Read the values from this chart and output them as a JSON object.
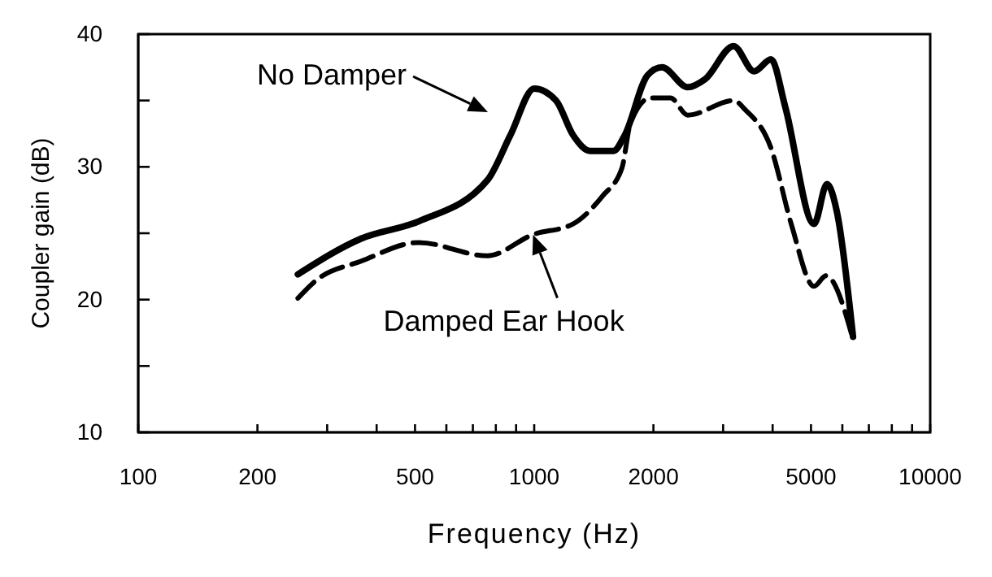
{
  "chart_data": {
    "type": "line",
    "xlabel": "Frequency (Hz)",
    "ylabel": "Coupler gain (dB)",
    "log": "x",
    "xlim": [
      100,
      10000
    ],
    "ylim": [
      10,
      40
    ],
    "xticks": [
      100,
      200,
      {
        "value": 300,
        "label": null
      },
      {
        "value": 400,
        "label": null
      },
      500,
      {
        "value": 600,
        "label": null
      },
      {
        "value": 700,
        "label": null
      },
      {
        "value": 800,
        "label": null
      },
      {
        "value": 900,
        "label": null
      },
      1000,
      2000,
      {
        "value": 3000,
        "label": null
      },
      {
        "value": 4000,
        "label": null
      },
      5000,
      {
        "value": 6000,
        "label": null
      },
      {
        "value": 7000,
        "label": null
      },
      {
        "value": 8000,
        "label": null
      },
      {
        "value": 9000,
        "label": null
      },
      10000
    ],
    "yticks": [
      10,
      {
        "value": 15,
        "label": null
      },
      20,
      {
        "value": 25,
        "label": null
      },
      30,
      {
        "value": 35,
        "label": null
      },
      40
    ],
    "grid": false,
    "marker": "none",
    "series": [
      {
        "color": "#000000",
        "line_style": "solid",
        "x": [
          253,
          366,
          511,
          762,
          871,
          1000,
          1135,
          1253,
          1386,
          1585,
          1694,
          1933,
          2103,
          2442,
          2700,
          3189,
          3590,
          3964,
          4306,
          5090,
          5486,
          5823,
          6385
        ],
        "values": [
          21.9,
          24.6,
          25.9,
          29.0,
          32.4,
          35.9,
          35.0,
          32.4,
          31.2,
          31.2,
          32.4,
          36.9,
          37.5,
          36.0,
          36.6,
          39.1,
          37.2,
          38.1,
          34.5,
          25.7,
          28.7,
          26.5,
          17.2
        ]
      },
      {
        "color": "#000000",
        "line_style": "dashed",
        "x": [
          253,
          280,
          366,
          511,
          762,
          993,
          1253,
          1487,
          1665,
          1750,
          1966,
          2208,
          2442,
          3189,
          3413,
          3964,
          4457,
          5090,
          5458,
          6385
        ],
        "values": [
          20.1,
          21.4,
          22.9,
          24.3,
          23.3,
          24.9,
          25.7,
          27.8,
          29.9,
          33.3,
          35.2,
          35.2,
          33.9,
          35.0,
          34.3,
          31.4,
          25.7,
          21.0,
          21.8,
          17.0
        ]
      }
    ],
    "annotations": [
      "No Damper",
      {
        "text": "Damped Ear Hook",
        "x": 993,
        "y": 24.9
      }
    ]
  }
}
